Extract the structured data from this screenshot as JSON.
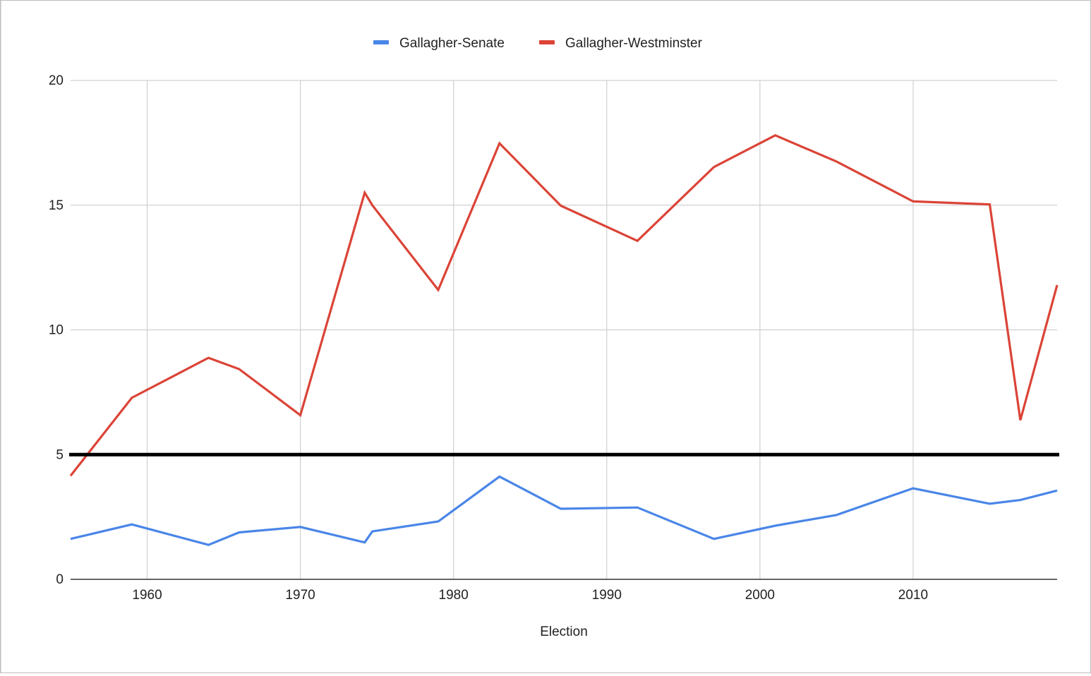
{
  "chart_data": {
    "type": "line",
    "title": "",
    "xlabel": "Election",
    "ylabel": "",
    "xlim": [
      1955,
      2019.4
    ],
    "ylim": [
      0,
      20
    ],
    "x_ticks": [
      1960,
      1970,
      1980,
      1990,
      2000,
      2010
    ],
    "y_ticks": [
      0,
      5,
      10,
      15,
      20
    ],
    "grid": true,
    "legend_position": "top",
    "reference_line": {
      "y": 5,
      "color": "#000000"
    },
    "series": [
      {
        "name": "Gallagher-Senate",
        "color": "#4a86e8",
        "x": [
          1955,
          1959,
          1964,
          1966,
          1970,
          1974.2,
          1974.7,
          1979,
          1983,
          1987,
          1992,
          1997,
          2001,
          2005,
          2010,
          2015,
          2017,
          2019.4
        ],
        "y": [
          1.62,
          2.2,
          1.38,
          1.88,
          2.1,
          1.48,
          1.92,
          2.32,
          4.12,
          2.83,
          2.88,
          1.62,
          2.15,
          2.58,
          3.65,
          3.03,
          3.18,
          3.56
        ]
      },
      {
        "name": "Gallagher-Westminster",
        "color": "#db4437",
        "x": [
          1955,
          1959,
          1964,
          1966,
          1970,
          1974.2,
          1974.7,
          1979,
          1983,
          1987,
          1992,
          1997,
          2001,
          2005,
          2010,
          2015,
          2017,
          2019.4
        ],
        "y": [
          4.15,
          7.28,
          8.88,
          8.43,
          6.58,
          15.5,
          15.0,
          11.6,
          17.48,
          14.98,
          13.57,
          16.53,
          17.8,
          16.75,
          15.15,
          15.03,
          6.38,
          11.8
        ]
      }
    ]
  }
}
